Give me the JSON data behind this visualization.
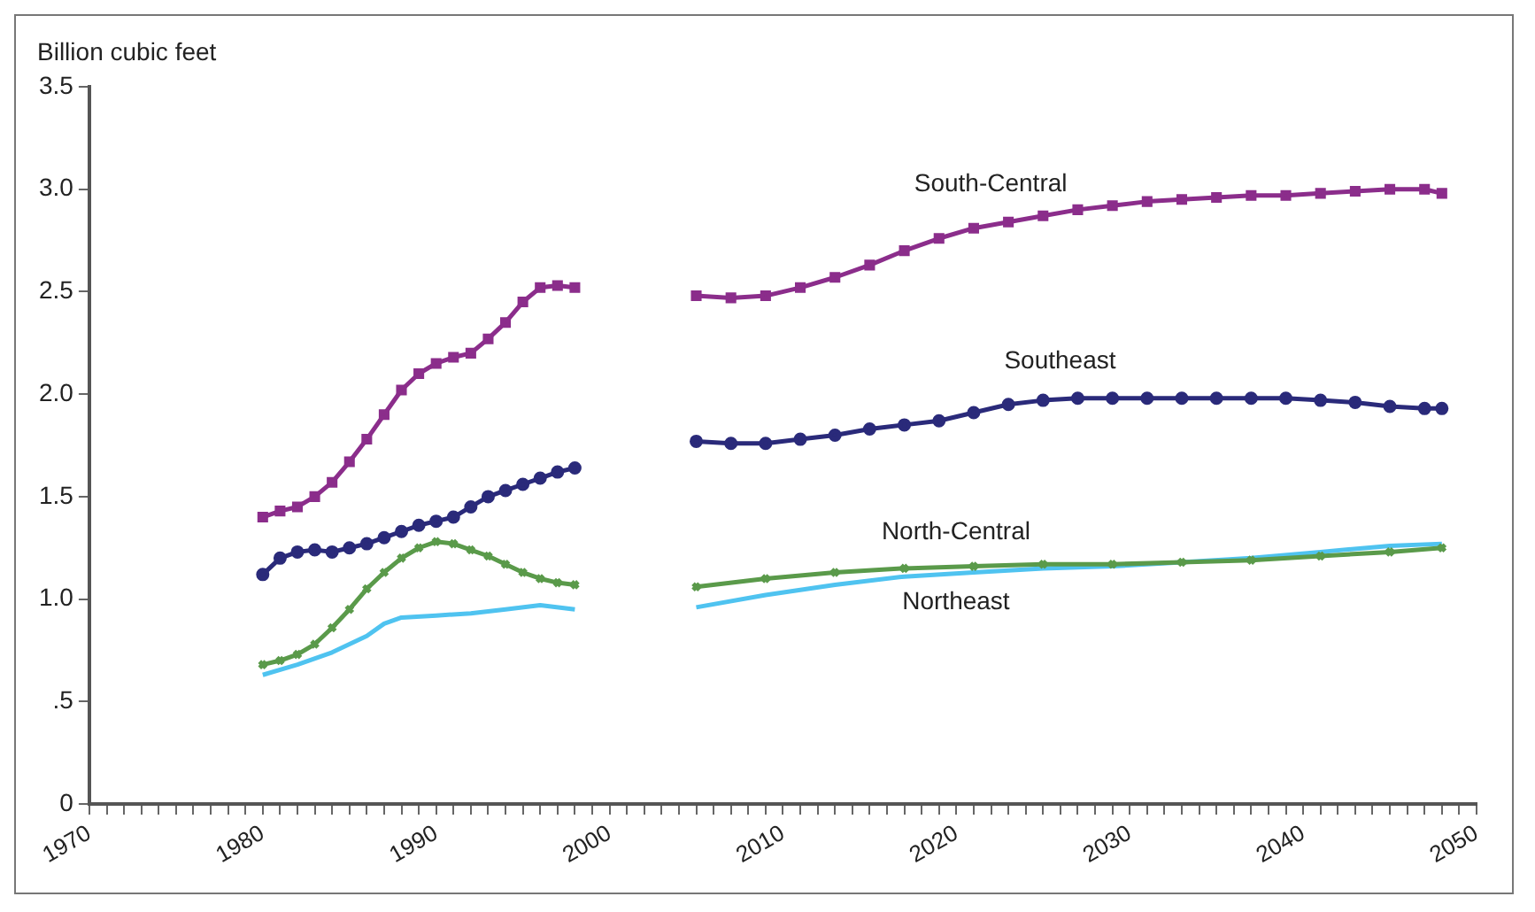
{
  "chart_data": {
    "type": "line",
    "ylabel": "Billion cubic feet",
    "legend": false,
    "grid": false,
    "line_style": "solid",
    "xlim": [
      1970,
      2050
    ],
    "xticks": [
      1970,
      {
        "value": 1971,
        "label": null
      },
      {
        "value": 1972,
        "label": null
      },
      {
        "value": 1973,
        "label": null
      },
      {
        "value": 1974,
        "label": null
      },
      {
        "value": 1975,
        "label": null
      },
      {
        "value": 1976,
        "label": null
      },
      {
        "value": 1977,
        "label": null
      },
      {
        "value": 1978,
        "label": null
      },
      {
        "value": 1979,
        "label": null
      },
      1980,
      {
        "value": 1981,
        "label": null
      },
      {
        "value": 1982,
        "label": null
      },
      {
        "value": 1983,
        "label": null
      },
      {
        "value": 1984,
        "label": null
      },
      {
        "value": 1985,
        "label": null
      },
      {
        "value": 1986,
        "label": null
      },
      {
        "value": 1987,
        "label": null
      },
      {
        "value": 1988,
        "label": null
      },
      {
        "value": 1989,
        "label": null
      },
      1990,
      {
        "value": 1991,
        "label": null
      },
      {
        "value": 1992,
        "label": null
      },
      {
        "value": 1993,
        "label": null
      },
      {
        "value": 1994,
        "label": null
      },
      {
        "value": 1995,
        "label": null
      },
      {
        "value": 1996,
        "label": null
      },
      {
        "value": 1997,
        "label": null
      },
      {
        "value": 1998,
        "label": null
      },
      {
        "value": 1999,
        "label": null
      },
      2000,
      {
        "value": 2001,
        "label": null
      },
      {
        "value": 2002,
        "label": null
      },
      {
        "value": 2003,
        "label": null
      },
      {
        "value": 2004,
        "label": null
      },
      {
        "value": 2005,
        "label": null
      },
      {
        "value": 2006,
        "label": null
      },
      {
        "value": 2007,
        "label": null
      },
      {
        "value": 2008,
        "label": null
      },
      {
        "value": 2009,
        "label": null
      },
      2010,
      {
        "value": 2011,
        "label": null
      },
      {
        "value": 2012,
        "label": null
      },
      {
        "value": 2013,
        "label": null
      },
      {
        "value": 2014,
        "label": null
      },
      {
        "value": 2015,
        "label": null
      },
      {
        "value": 2016,
        "label": null
      },
      {
        "value": 2017,
        "label": null
      },
      {
        "value": 2018,
        "label": null
      },
      {
        "value": 2019,
        "label": null
      },
      2020,
      {
        "value": 2021,
        "label": null
      },
      {
        "value": 2022,
        "label": null
      },
      {
        "value": 2023,
        "label": null
      },
      {
        "value": 2024,
        "label": null
      },
      {
        "value": 2025,
        "label": null
      },
      {
        "value": 2026,
        "label": null
      },
      {
        "value": 2027,
        "label": null
      },
      {
        "value": 2028,
        "label": null
      },
      {
        "value": 2029,
        "label": null
      },
      2030,
      {
        "value": 2031,
        "label": null
      },
      {
        "value": 2032,
        "label": null
      },
      {
        "value": 2033,
        "label": null
      },
      {
        "value": 2034,
        "label": null
      },
      {
        "value": 2035,
        "label": null
      },
      {
        "value": 2036,
        "label": null
      },
      {
        "value": 2037,
        "label": null
      },
      {
        "value": 2038,
        "label": null
      },
      {
        "value": 2039,
        "label": null
      },
      2040,
      {
        "value": 2041,
        "label": null
      },
      {
        "value": 2042,
        "label": null
      },
      {
        "value": 2043,
        "label": null
      },
      {
        "value": 2044,
        "label": null
      },
      {
        "value": 2045,
        "label": null
      },
      {
        "value": 2046,
        "label": null
      },
      {
        "value": 2047,
        "label": null
      },
      {
        "value": 2048,
        "label": null
      },
      {
        "value": 2049,
        "label": null
      },
      2050
    ],
    "ylim": [
      0,
      3.5
    ],
    "yticks": [
      0,
      {
        "value": 0.5,
        "label": ".5"
      },
      {
        "value": 1,
        "label": "1.0"
      },
      {
        "value": 1.5,
        "label": "1.5"
      },
      {
        "value": 2,
        "label": "2.0"
      },
      {
        "value": 2.5,
        "label": "2.5"
      },
      {
        "value": 3,
        "label": "3.0"
      },
      {
        "value": 3.5,
        "label": "3.5"
      }
    ],
    "series": [
      {
        "name": "South-Central",
        "color": "#8b2d8b",
        "marker": "square",
        "x": [
          1980,
          1981,
          1982,
          1983,
          1984,
          1985,
          1986,
          1987,
          1988,
          1989,
          1990,
          1991,
          1992,
          1993,
          1994,
          1995,
          1996,
          1997,
          1998,
          2001,
          2005,
          2007,
          2009,
          2011,
          2013,
          2015,
          2017,
          2019,
          2021,
          2023,
          2025,
          2027,
          2029,
          2031,
          2033,
          2035,
          2037,
          2039,
          2041,
          2043,
          2045,
          2047,
          2048
        ],
        "values": [
          1.4,
          1.43,
          1.45,
          1.5,
          1.57,
          1.67,
          1.78,
          1.9,
          2.02,
          2.1,
          2.15,
          2.18,
          2.2,
          2.27,
          2.35,
          2.45,
          2.52,
          2.53,
          2.52,
          null,
          2.48,
          2.47,
          2.48,
          2.52,
          2.57,
          2.63,
          2.7,
          2.76,
          2.81,
          2.84,
          2.87,
          2.9,
          2.92,
          2.94,
          2.95,
          2.96,
          2.97,
          2.97,
          2.98,
          2.99,
          3.0,
          3.0,
          2.98
        ]
      },
      {
        "name": "Southeast",
        "color": "#2a2a7a",
        "marker": "circle",
        "x": [
          1980,
          1981,
          1982,
          1983,
          1984,
          1985,
          1986,
          1987,
          1988,
          1989,
          1990,
          1991,
          1992,
          1993,
          1994,
          1995,
          1996,
          1997,
          1998,
          2001,
          2005,
          2007,
          2009,
          2011,
          2013,
          2015,
          2017,
          2019,
          2021,
          2023,
          2025,
          2027,
          2029,
          2031,
          2033,
          2035,
          2037,
          2039,
          2041,
          2043,
          2045,
          2047,
          2048
        ],
        "values": [
          1.12,
          1.2,
          1.23,
          1.24,
          1.23,
          1.25,
          1.27,
          1.3,
          1.33,
          1.36,
          1.38,
          1.4,
          1.45,
          1.5,
          1.53,
          1.56,
          1.59,
          1.62,
          1.64,
          null,
          1.77,
          1.76,
          1.76,
          1.78,
          1.8,
          1.83,
          1.85,
          1.87,
          1.91,
          1.95,
          1.97,
          1.98,
          1.98,
          1.98,
          1.98,
          1.98,
          1.98,
          1.98,
          1.97,
          1.96,
          1.94,
          1.93,
          1.93
        ]
      },
      {
        "name": "North-Central",
        "color": "#5a9a4a",
        "marker": "cross",
        "x": [
          1980,
          1981,
          1982,
          1983,
          1984,
          1985,
          1986,
          1987,
          1988,
          1989,
          1990,
          1991,
          1992,
          1993,
          1994,
          1995,
          1996,
          1997,
          1998,
          2001,
          2005,
          2009,
          2013,
          2017,
          2021,
          2025,
          2029,
          2033,
          2037,
          2041,
          2045,
          2048
        ],
        "values": [
          0.68,
          0.7,
          0.73,
          0.78,
          0.86,
          0.95,
          1.05,
          1.13,
          1.2,
          1.25,
          1.28,
          1.27,
          1.24,
          1.21,
          1.17,
          1.13,
          1.1,
          1.08,
          1.07,
          null,
          1.06,
          1.1,
          1.13,
          1.15,
          1.16,
          1.17,
          1.17,
          1.18,
          1.19,
          1.21,
          1.23,
          1.25
        ]
      },
      {
        "name": "Northeast",
        "color": "#4fc3f0",
        "marker": "none",
        "x": [
          1980,
          1982,
          1984,
          1986,
          1987,
          1988,
          1990,
          1992,
          1994,
          1996,
          1998,
          2001,
          2005,
          2009,
          2013,
          2017,
          2021,
          2025,
          2029,
          2033,
          2037,
          2041,
          2045,
          2048
        ],
        "values": [
          0.63,
          0.68,
          0.74,
          0.82,
          0.88,
          0.91,
          0.92,
          0.93,
          0.95,
          0.97,
          0.95,
          null,
          0.96,
          1.02,
          1.07,
          1.11,
          1.13,
          1.15,
          1.16,
          1.18,
          1.2,
          1.23,
          1.26,
          1.27
        ]
      }
    ]
  }
}
